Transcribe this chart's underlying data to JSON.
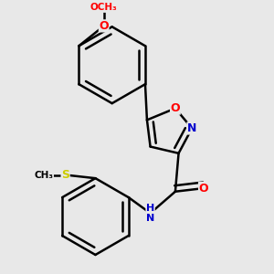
{
  "bg_color": "#e8e8e8",
  "bond_color": "#000000",
  "bond_width": 1.8,
  "atom_colors": {
    "O": "#ff0000",
    "N": "#0000cd",
    "S": "#cccc00",
    "C": "#000000",
    "H": "#777777"
  },
  "font_size": 9,
  "fig_size": [
    3.0,
    3.0
  ],
  "dpi": 100
}
